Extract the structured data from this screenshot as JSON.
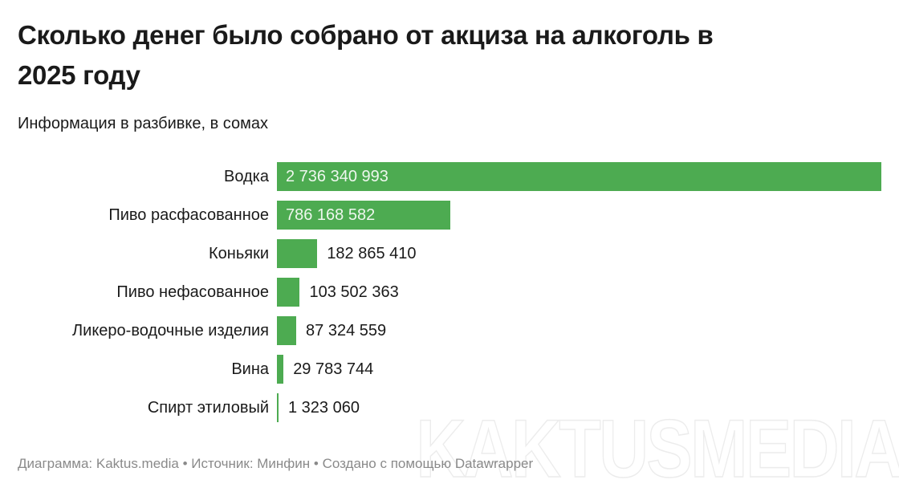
{
  "header": {
    "title": "Сколько денег было собрано от акциза на алкоголь в 2025 году",
    "subtitle": "Информация в разбивке, в сомах"
  },
  "chart_data": {
    "type": "bar",
    "orientation": "horizontal",
    "title": "Сколько денег было собрано от акциза на алкоголь в 2025 году",
    "subtitle": "Информация в разбивке, в сомах",
    "unit": "сомы",
    "categories": [
      "Водка",
      "Пиво расфасованное",
      "Коньяки",
      "Пиво нефасованное",
      "Ликеро-водочные изделия",
      "Вина",
      "Спирт этиловый"
    ],
    "values": [
      2736340993,
      786168582,
      182865410,
      103502363,
      87324559,
      29783744,
      1323060
    ],
    "value_labels": [
      "2 736 340 993",
      "786 168 582",
      "182 865 410",
      "103 502 363",
      "87 324 559",
      "29 783 744",
      "1 323 060"
    ],
    "xlim": [
      0,
      2736340993
    ],
    "grid": false,
    "legend": false,
    "bar_color": "#4dab51"
  },
  "footer": {
    "text": "Диаграмма: Kaktus.media • Источник: Минфин  • Создано с помощью Datawrapper"
  },
  "watermark": "KAKTUSMEDIA",
  "colors": {
    "bar": "#4dab51",
    "value_inside": "#eef7ee",
    "text": "#1a1a1a",
    "footer": "#8a8a8a",
    "watermark_stroke": "#ececec"
  }
}
